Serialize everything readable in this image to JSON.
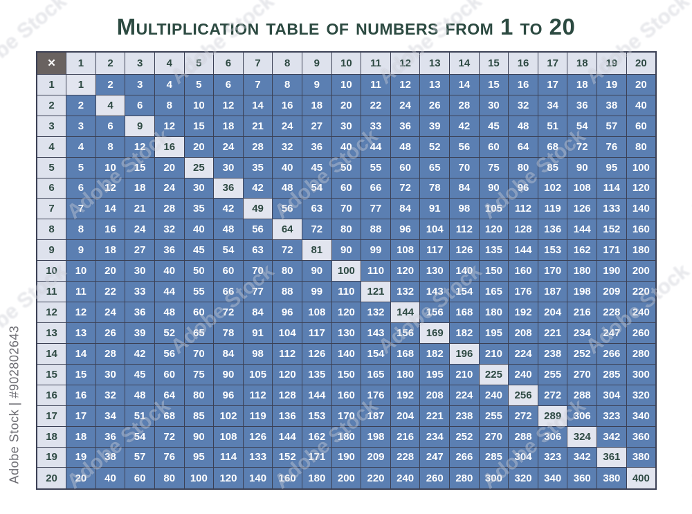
{
  "chart_data": {
    "type": "table",
    "title": "Multiplication table of numbers from 1 to 20",
    "corner_symbol": "✕",
    "col_headers": [
      1,
      2,
      3,
      4,
      5,
      6,
      7,
      8,
      9,
      10,
      11,
      12,
      13,
      14,
      15,
      16,
      17,
      18,
      19,
      20
    ],
    "row_headers": [
      1,
      2,
      3,
      4,
      5,
      6,
      7,
      8,
      9,
      10,
      11,
      12,
      13,
      14,
      15,
      16,
      17,
      18,
      19,
      20
    ],
    "rows": [
      [
        1,
        2,
        3,
        4,
        5,
        6,
        7,
        8,
        9,
        10,
        11,
        12,
        13,
        14,
        15,
        16,
        17,
        18,
        19,
        20
      ],
      [
        2,
        4,
        6,
        8,
        10,
        12,
        14,
        16,
        18,
        20,
        22,
        24,
        26,
        28,
        30,
        32,
        34,
        36,
        38,
        40
      ],
      [
        3,
        6,
        9,
        12,
        15,
        18,
        21,
        24,
        27,
        30,
        33,
        36,
        39,
        42,
        45,
        48,
        51,
        54,
        57,
        60
      ],
      [
        4,
        8,
        12,
        16,
        20,
        24,
        28,
        32,
        36,
        40,
        44,
        48,
        52,
        56,
        60,
        64,
        68,
        72,
        76,
        80
      ],
      [
        5,
        10,
        15,
        20,
        25,
        30,
        35,
        40,
        45,
        50,
        55,
        60,
        65,
        70,
        75,
        80,
        85,
        90,
        95,
        100
      ],
      [
        6,
        12,
        18,
        24,
        30,
        36,
        42,
        48,
        54,
        60,
        66,
        72,
        78,
        84,
        90,
        96,
        102,
        108,
        114,
        120
      ],
      [
        7,
        14,
        21,
        28,
        35,
        42,
        49,
        56,
        63,
        70,
        77,
        84,
        91,
        98,
        105,
        112,
        119,
        126,
        133,
        140
      ],
      [
        8,
        16,
        24,
        32,
        40,
        48,
        56,
        64,
        72,
        80,
        88,
        96,
        104,
        112,
        120,
        128,
        136,
        144,
        152,
        160
      ],
      [
        9,
        18,
        27,
        36,
        45,
        54,
        63,
        72,
        81,
        90,
        99,
        108,
        117,
        126,
        135,
        144,
        153,
        162,
        171,
        180
      ],
      [
        10,
        20,
        30,
        40,
        50,
        60,
        70,
        80,
        90,
        100,
        110,
        120,
        130,
        140,
        150,
        160,
        170,
        180,
        190,
        200
      ],
      [
        11,
        22,
        33,
        44,
        55,
        66,
        77,
        88,
        99,
        110,
        121,
        132,
        143,
        154,
        165,
        176,
        187,
        198,
        209,
        220
      ],
      [
        12,
        24,
        36,
        48,
        60,
        72,
        84,
        96,
        108,
        120,
        132,
        144,
        156,
        168,
        180,
        192,
        204,
        216,
        228,
        240
      ],
      [
        13,
        26,
        39,
        52,
        65,
        78,
        91,
        104,
        117,
        130,
        143,
        156,
        169,
        182,
        195,
        208,
        221,
        234,
        247,
        260
      ],
      [
        14,
        28,
        42,
        56,
        70,
        84,
        98,
        112,
        126,
        140,
        154,
        168,
        182,
        196,
        210,
        224,
        238,
        252,
        266,
        280
      ],
      [
        15,
        30,
        45,
        60,
        75,
        90,
        105,
        120,
        135,
        150,
        165,
        180,
        195,
        210,
        225,
        240,
        255,
        270,
        285,
        300
      ],
      [
        16,
        32,
        48,
        64,
        80,
        96,
        112,
        128,
        144,
        160,
        176,
        192,
        208,
        224,
        240,
        256,
        272,
        288,
        304,
        320
      ],
      [
        17,
        34,
        51,
        68,
        85,
        102,
        119,
        136,
        153,
        170,
        187,
        204,
        221,
        238,
        255,
        272,
        289,
        306,
        323,
        340
      ],
      [
        18,
        36,
        54,
        72,
        90,
        108,
        126,
        144,
        162,
        180,
        198,
        216,
        234,
        252,
        270,
        288,
        306,
        324,
        342,
        360
      ],
      [
        19,
        38,
        57,
        76,
        95,
        114,
        133,
        152,
        171,
        190,
        209,
        228,
        247,
        266,
        285,
        304,
        323,
        342,
        361,
        380
      ],
      [
        20,
        40,
        60,
        80,
        100,
        120,
        140,
        160,
        180,
        200,
        220,
        240,
        260,
        280,
        300,
        320,
        340,
        360,
        380,
        400
      ]
    ],
    "layout_hints": {
      "grid": "on",
      "highlight": "main diagonal (perfect squares) shown in light cells with dark text",
      "header_row_and_column": "light cells with dark text",
      "body_cells": "blue cells with white text"
    }
  },
  "watermarks": {
    "tile_text": "Adobe Stock",
    "id_text": "Adobe Stock | #902802643"
  },
  "colors": {
    "title_text": "#2c4a41",
    "cell_blue": "#5b7fb2",
    "cell_light": "#dee2ed",
    "diagonal_light": "#e2e5ef",
    "corner_background": "#696260",
    "grid_border": "#3b4054",
    "body_text": "#ffffff",
    "header_text": "#2e4a43"
  }
}
